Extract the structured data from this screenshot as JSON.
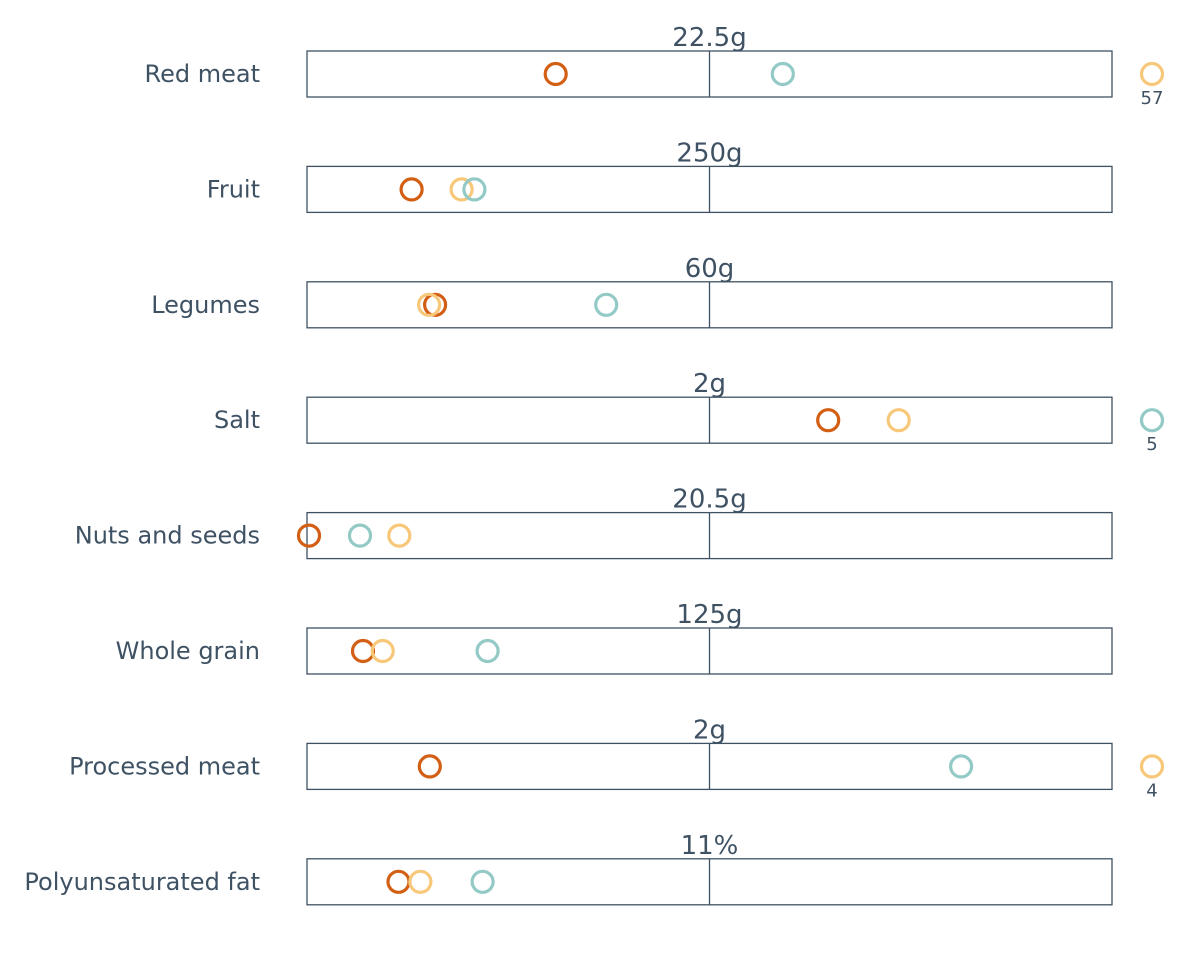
{
  "chart_data": {
    "type": "dot-strip",
    "colors": {
      "orange": "#d35f15",
      "teal": "#93cac6",
      "yellow": "#f8c87a",
      "text": "#3f5264",
      "frame": "#3f5264"
    },
    "series": [
      {
        "key": "orange",
        "color": "#d35f15"
      },
      {
        "key": "yellow",
        "color": "#f8c87a"
      },
      {
        "key": "teal",
        "color": "#93cac6"
      }
    ],
    "rows": [
      {
        "label": "Red meat",
        "reference": "22.5g",
        "ref_value": 22.5,
        "values": {
          "orange": 13.9,
          "teal": 26.6,
          "yellow": 57
        },
        "overflow": {
          "series": "yellow",
          "text": "57"
        }
      },
      {
        "label": "Fruit",
        "reference": "250g",
        "ref_value": 250,
        "values": {
          "orange": 65,
          "yellow": 96,
          "teal": 104
        }
      },
      {
        "label": "Legumes",
        "reference": "60g",
        "ref_value": 60,
        "values": {
          "orange": 19.1,
          "yellow": 18.2,
          "teal": 44.6
        }
      },
      {
        "label": "Salt",
        "reference": "2g",
        "ref_value": 2,
        "values": {
          "orange": 2.59,
          "yellow": 2.94,
          "teal": 5
        },
        "overflow": {
          "series": "teal",
          "text": "5"
        }
      },
      {
        "label": "Nuts and seeds",
        "reference": "20.5g",
        "ref_value": 20.5,
        "values": {
          "orange": 0.1,
          "teal": 2.7,
          "yellow": 4.7
        }
      },
      {
        "label": "Whole grain",
        "reference": "125g",
        "ref_value": 125,
        "values": {
          "orange": 17.4,
          "yellow": 23.5,
          "teal": 56.1
        }
      },
      {
        "label": "Processed meat",
        "reference": "2g",
        "ref_value": 2,
        "values": {
          "orange": 0.61,
          "teal": 3.25,
          "yellow": 4
        },
        "overflow": {
          "series": "yellow",
          "text": "4"
        }
      },
      {
        "label": "Polyunsaturated fat",
        "reference": "11%",
        "ref_value": 11,
        "values": {
          "orange": 2.5,
          "yellow": 3.1,
          "teal": 4.8
        }
      }
    ]
  }
}
